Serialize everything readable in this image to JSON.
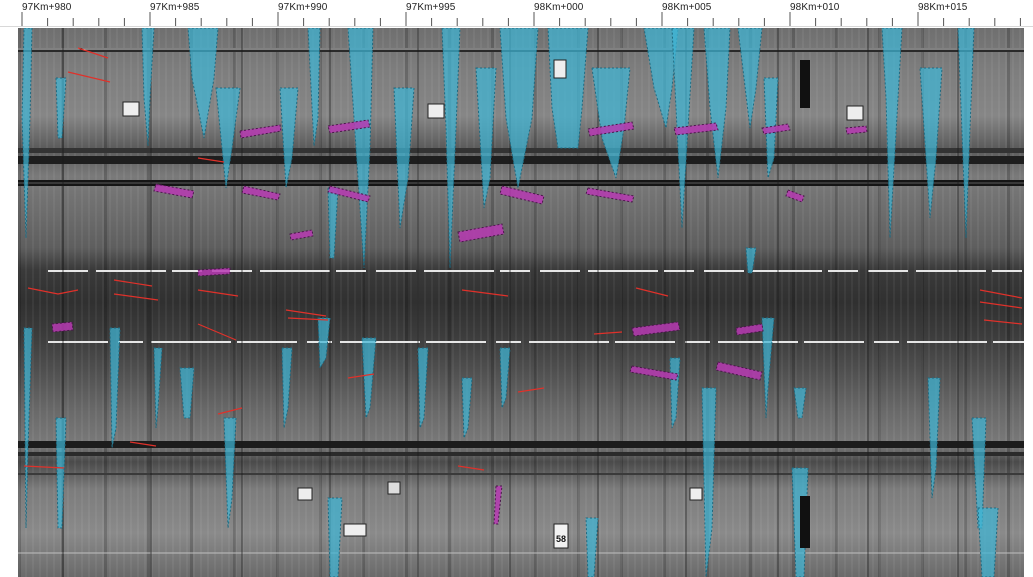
{
  "ruler": {
    "ticks": [
      {
        "label": "97Km+980"
      },
      {
        "label": "97Km+985"
      },
      {
        "label": "97Km+990"
      },
      {
        "label": "97Km+995"
      },
      {
        "label": "98Km+000"
      },
      {
        "label": "98Km+005"
      },
      {
        "label": "98Km+010"
      },
      {
        "label": "98Km+015"
      }
    ]
  },
  "scan": {
    "markers": [
      {
        "label": "58"
      }
    ]
  },
  "colors": {
    "water_leakage": "#3fb6d6",
    "spalling": "#b73ab3",
    "crack": "#e0312a",
    "background": "#ffffff"
  }
}
